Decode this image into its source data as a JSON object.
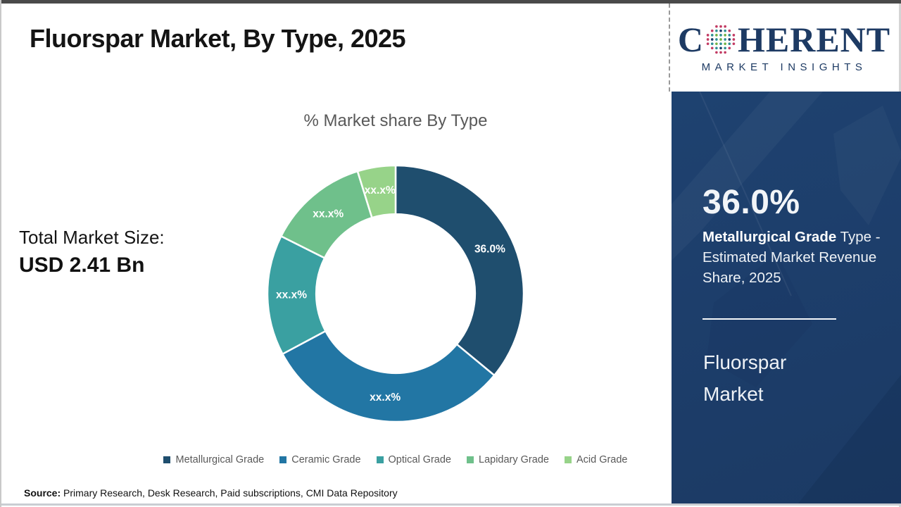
{
  "header": {
    "title": "Fluorspar Market, By Type, 2025"
  },
  "logo": {
    "text_c": "C",
    "text_rest": "HERENT",
    "subtitle": "MARKET INSIGHTS",
    "globe_icon": "dot-globe-icon",
    "navy": "#1d3a63",
    "dot_colors": {
      "green": "#70b244",
      "teal": "#2f8f94",
      "navy": "#1d3e6b",
      "crimson": "#c23b63"
    }
  },
  "left_panel": {
    "label": "Total Market Size:",
    "value": "USD 2.41 Bn"
  },
  "chart_data": {
    "type": "pie",
    "subtype": "donut",
    "title": "% Market share By Type",
    "categories": [
      "Metallurgical Grade",
      "Ceramic Grade",
      "Optical Grade",
      "Lapidary Grade",
      "Acid Grade"
    ],
    "values": [
      36.0,
      31.2,
      15.2,
      12.8,
      4.8
    ],
    "slice_labels": [
      "36.0%",
      "xx.x%",
      "xx.x%",
      "xx.x%",
      "xx.x%"
    ],
    "colors": [
      "#1f4e6e",
      "#2276a4",
      "#3aa0a1",
      "#6fc08b",
      "#97d389"
    ],
    "start_angle_deg": 0,
    "direction": "clockwise",
    "inner_radius_ratio": 0.62,
    "slice_border_color": "#ffffff",
    "legend_position": "bottom",
    "label_color": "#ffffff"
  },
  "sidebar": {
    "bg_color": "#1d3e6b",
    "stat_value": "36.0%",
    "stat_label_bold": "Metallurgical Grade",
    "stat_label_rest": " Type - Estimated Market Revenue Share, 2025",
    "market_name": "Fluorspar Market"
  },
  "footer": {
    "source_label": "Source:",
    "source_text": " Primary Research, Desk Research, Paid subscriptions, CMI Data Repository"
  }
}
